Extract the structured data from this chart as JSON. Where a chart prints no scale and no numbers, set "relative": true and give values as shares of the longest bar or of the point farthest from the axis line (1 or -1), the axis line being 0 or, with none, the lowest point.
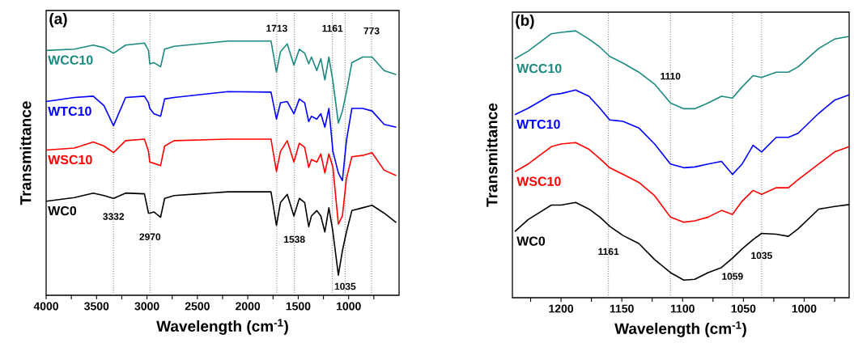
{
  "chart_data": [
    {
      "type": "line",
      "relative": true,
      "xlabel": "Wavelength (cm$^{-1}$)",
      "ylabel": "Transmittance",
      "xlim": [
        4000,
        500
      ],
      "xticks": [
        4000,
        {
          "value": 3750,
          "label": null
        },
        3500,
        {
          "value": 3250,
          "label": null
        },
        3000,
        {
          "value": 2750,
          "label": null
        },
        2500,
        {
          "value": 2250,
          "label": null
        },
        2000,
        {
          "value": 1750,
          "label": null
        },
        1500,
        {
          "value": 1250,
          "label": null
        },
        1000,
        {
          "value": 750,
          "label": null
        }
      ],
      "x": [
        4000,
        3720,
        3533,
        3426,
        3332,
        3212,
        3025,
        2985,
        2972,
        2932,
        2865,
        2825,
        2731,
        2197,
        1770,
        1716,
        1676,
        1609,
        1543,
        1489,
        1436,
        1396,
        1369,
        1316,
        1276,
        1236,
        1196,
        1156,
        1102,
        1062,
        1022,
        968,
        862,
        768,
        648,
        528
      ],
      "series": [
        {
          "name": "WCC10",
          "color": "#1a8a80",
          "values": [
            0.963,
            0.968,
            0.984,
            0.974,
            0.952,
            0.984,
            0.992,
            0.963,
            0.91,
            0.915,
            0.899,
            0.968,
            0.979,
            1.0,
            1.0,
            0.878,
            0.958,
            0.989,
            0.905,
            0.968,
            0.952,
            0.91,
            0.937,
            0.884,
            0.931,
            0.847,
            0.937,
            0.841,
            0.677,
            0.725,
            0.799,
            0.915,
            0.937,
            0.937,
            0.884,
            0.868
          ]
        },
        {
          "name": "WTC10",
          "color": "#0000ff",
          "values": [
            0.762,
            0.778,
            0.783,
            0.746,
            0.667,
            0.778,
            0.783,
            0.757,
            0.735,
            0.714,
            0.704,
            0.772,
            0.778,
            0.801,
            0.799,
            0.693,
            0.757,
            0.762,
            0.714,
            0.772,
            0.757,
            0.683,
            0.704,
            0.693,
            0.714,
            0.661,
            0.735,
            0.566,
            0.481,
            0.451,
            0.608,
            0.735,
            0.735,
            0.725,
            0.672,
            0.661
          ]
        },
        {
          "name": "WSC10",
          "color": "#ff0000",
          "values": [
            0.571,
            0.579,
            0.603,
            0.587,
            0.561,
            0.608,
            0.614,
            0.566,
            0.524,
            0.519,
            0.51,
            0.587,
            0.608,
            0.614,
            0.614,
            0.487,
            0.566,
            0.608,
            0.524,
            0.598,
            0.582,
            0.503,
            0.534,
            0.524,
            0.556,
            0.481,
            0.556,
            0.503,
            0.28,
            0.312,
            0.46,
            0.545,
            0.55,
            0.561,
            0.492,
            0.471
          ]
        },
        {
          "name": "WC0",
          "color": "#000000",
          "values": [
            0.37,
            0.384,
            0.402,
            0.392,
            0.381,
            0.402,
            0.399,
            0.323,
            0.323,
            0.328,
            0.307,
            0.381,
            0.392,
            0.407,
            0.407,
            0.275,
            0.365,
            0.397,
            0.312,
            0.381,
            0.365,
            0.27,
            0.312,
            0.333,
            0.312,
            0.249,
            0.344,
            0.249,
            0.079,
            0.175,
            0.249,
            0.333,
            0.344,
            0.354,
            0.323,
            0.286
          ]
        }
      ],
      "ref_lines": [
        {
          "axis": "x",
          "value": 3332,
          "color": "#555555",
          "line_style": "dotted"
        },
        {
          "axis": "x",
          "value": 2970,
          "color": "#555555",
          "line_style": "dotted"
        },
        {
          "axis": "x",
          "value": 1713,
          "color": "#555555",
          "line_style": "dotted"
        },
        {
          "axis": "x",
          "value": 1538,
          "color": "#555555",
          "line_style": "dotted"
        },
        {
          "axis": "x",
          "value": 1161,
          "color": "#555555",
          "line_style": "dotted"
        },
        {
          "axis": "x",
          "value": 1035,
          "color": "#555555",
          "line_style": "dotted"
        },
        {
          "axis": "x",
          "value": 773,
          "color": "#555555",
          "line_style": "dotted"
        }
      ],
      "annotations": [
        "(a)",
        {
          "text": "3332",
          "x": 3332,
          "y": 0.31
        },
        {
          "text": "2970",
          "x": 2970,
          "y": 0.23
        },
        {
          "text": "1713",
          "x": 1713,
          "y": 1.05
        },
        {
          "text": "1538",
          "x": 1538,
          "y": 0.22
        },
        {
          "text": "1161",
          "x": 1161,
          "y": 1.05
        },
        {
          "text": "1035",
          "x": 1035,
          "y": 0.035
        },
        {
          "text": "773",
          "x": 773,
          "y": 1.04
        }
      ]
    },
    {
      "type": "line",
      "relative": true,
      "xlabel": "Wavelength (cm$^{-1}$)",
      "ylabel": "Transmittance",
      "xlim": [
        1240,
        963
      ],
      "xticks": [
        {
          "value": 1225,
          "label": null
        },
        1200,
        {
          "value": 1175,
          "label": null
        },
        1150,
        {
          "value": 1125,
          "label": null
        },
        1100,
        {
          "value": 1075,
          "label": null
        },
        1050,
        {
          "value": 1025,
          "label": null
        },
        1000,
        {
          "value": 975,
          "label": null
        }
      ],
      "x": [
        1238,
        1227,
        1208,
        1200,
        1188,
        1177,
        1168,
        1160,
        1149,
        1136,
        1123,
        1110,
        1099,
        1090,
        1079,
        1068,
        1059,
        1051,
        1042,
        1035,
        1023,
        1013,
        1005,
        988,
        975,
        963
      ],
      "series": [
        {
          "name": "WCC10",
          "color": "#1a8a80",
          "values": [
            0.895,
            0.924,
            0.989,
            0.994,
            1.0,
            0.969,
            0.939,
            0.904,
            0.879,
            0.845,
            0.8,
            0.73,
            0.708,
            0.708,
            0.73,
            0.755,
            0.748,
            0.79,
            0.832,
            0.825,
            0.845,
            0.845,
            0.865,
            0.934,
            0.969,
            0.979
          ]
        },
        {
          "name": "WTC10",
          "color": "#0000ff",
          "values": [
            0.686,
            0.71,
            0.76,
            0.765,
            0.778,
            0.755,
            0.71,
            0.666,
            0.661,
            0.636,
            0.576,
            0.501,
            0.487,
            0.49,
            0.501,
            0.511,
            0.462,
            0.501,
            0.571,
            0.546,
            0.601,
            0.601,
            0.616,
            0.691,
            0.74,
            0.76
          ]
        },
        {
          "name": "WSC10",
          "color": "#ff0000",
          "values": [
            0.472,
            0.501,
            0.566,
            0.576,
            0.581,
            0.556,
            0.521,
            0.487,
            0.462,
            0.432,
            0.382,
            0.302,
            0.283,
            0.288,
            0.302,
            0.327,
            0.312,
            0.362,
            0.402,
            0.387,
            0.412,
            0.412,
            0.442,
            0.501,
            0.546,
            0.566
          ]
        },
        {
          "name": "WC0",
          "color": "#000000",
          "values": [
            0.248,
            0.293,
            0.347,
            0.347,
            0.357,
            0.332,
            0.302,
            0.268,
            0.233,
            0.203,
            0.143,
            0.094,
            0.066,
            0.069,
            0.094,
            0.113,
            0.148,
            0.183,
            0.218,
            0.241,
            0.238,
            0.23,
            0.258,
            0.332,
            0.342,
            0.349
          ]
        }
      ],
      "ref_lines": [
        {
          "axis": "x",
          "value": 1161,
          "color": "#555555",
          "line_style": "dotted"
        },
        {
          "axis": "x",
          "value": 1110,
          "color": "#555555",
          "line_style": "dotted"
        },
        {
          "axis": "x",
          "value": 1059,
          "color": "#555555",
          "line_style": "dotted"
        },
        {
          "axis": "x",
          "value": 1035,
          "color": "#555555",
          "line_style": "dotted"
        }
      ],
      "annotations": [
        "(b)",
        {
          "text": "1161",
          "x": 1161,
          "y": 0.173
        },
        {
          "text": "1110",
          "x": 1110,
          "y": 0.83
        },
        {
          "text": "1059",
          "x": 1059,
          "y": 0.08
        },
        {
          "text": "1035",
          "x": 1035,
          "y": 0.158
        }
      ]
    }
  ]
}
